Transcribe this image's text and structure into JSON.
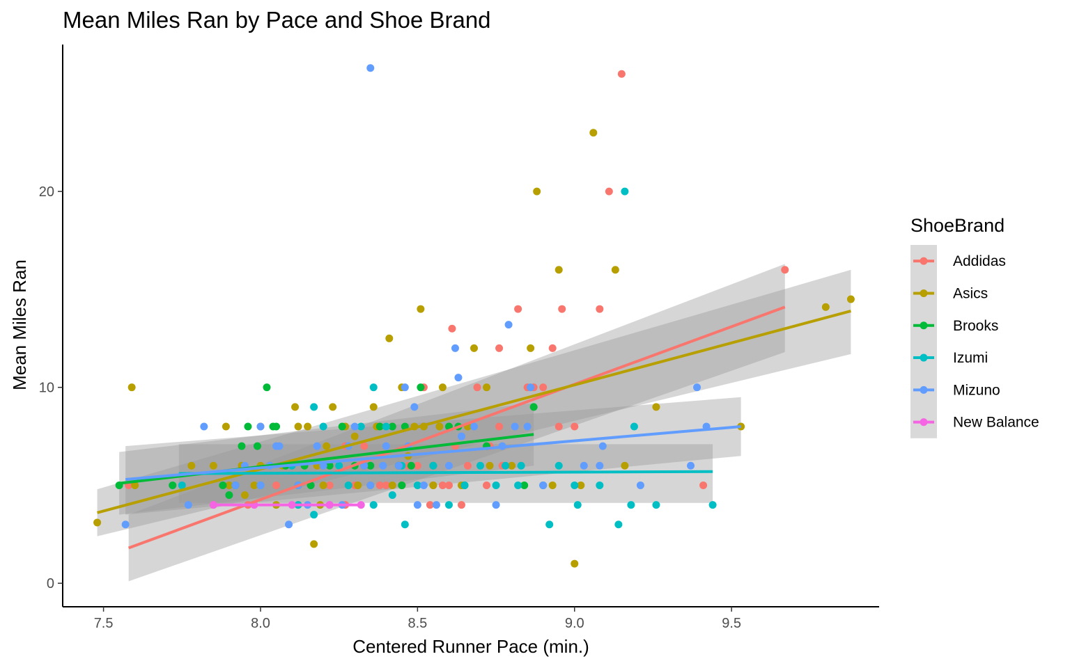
{
  "chart_data": {
    "type": "scatter",
    "title": "Mean Miles Ran by Pace and Shoe Brand",
    "xlabel": "Centered Runner Pace (min.)",
    "ylabel": "Mean Miles Ran",
    "xlim": [
      7.37,
      9.97
    ],
    "ylim": [
      -1.2,
      27.5
    ],
    "x_ticks": [
      7.5,
      8.0,
      8.5,
      9.0,
      9.5
    ],
    "x_tick_labels": [
      "7.5",
      "8.0",
      "8.5",
      "9.0",
      "9.5"
    ],
    "y_ticks": [
      0,
      10,
      20
    ],
    "y_tick_labels": [
      "0",
      "10",
      "20"
    ],
    "grid": false,
    "legend": {
      "title": "ShoeBrand",
      "position": "right"
    },
    "series": [
      {
        "name": "Addidas",
        "color": "#F8766D",
        "fit": {
          "x": [
            7.58,
            9.67
          ],
          "y": [
            1.8,
            14.1
          ],
          "band_lower": [
            0.1,
            11.8
          ],
          "band_upper": [
            3.5,
            16.3
          ]
        },
        "points": [
          [
            7.58,
            5
          ],
          [
            7.88,
            5
          ],
          [
            8.05,
            5
          ],
          [
            8.22,
            5
          ],
          [
            8.35,
            5
          ],
          [
            8.38,
            5
          ],
          [
            8.45,
            5
          ],
          [
            8.55,
            5
          ],
          [
            8.6,
            5
          ],
          [
            8.72,
            5
          ],
          [
            8.9,
            5
          ],
          [
            8.33,
            7
          ],
          [
            8.47,
            6
          ],
          [
            8.52,
            10
          ],
          [
            8.58,
            5
          ],
          [
            8.61,
            13
          ],
          [
            8.62,
            7
          ],
          [
            8.66,
            6
          ],
          [
            8.69,
            10
          ],
          [
            8.73,
            7
          ],
          [
            8.76,
            12
          ],
          [
            8.76,
            8
          ],
          [
            8.77,
            6
          ],
          [
            8.85,
            10
          ],
          [
            8.87,
            10
          ],
          [
            8.9,
            10
          ],
          [
            8.93,
            12
          ],
          [
            8.95,
            8
          ],
          [
            8.96,
            14
          ],
          [
            9.0,
            8
          ],
          [
            9.08,
            14
          ],
          [
            9.11,
            20
          ],
          [
            9.15,
            26
          ],
          [
            8.82,
            14
          ],
          [
            9.67,
            16
          ],
          [
            9.41,
            5
          ],
          [
            8.2,
            6
          ],
          [
            8.1,
            6
          ],
          [
            8.0,
            5
          ],
          [
            7.96,
            4
          ],
          [
            7.85,
            4
          ],
          [
            8.12,
            4
          ],
          [
            8.27,
            4
          ],
          [
            8.4,
            5
          ],
          [
            8.5,
            6
          ],
          [
            8.64,
            4
          ],
          [
            8.54,
            4
          ],
          [
            8.3,
            5
          ],
          [
            8.27,
            7
          ],
          [
            8.42,
            8
          ]
        ]
      },
      {
        "name": "Asics",
        "color": "#B79F00",
        "fit": {
          "x": [
            7.48,
            9.88
          ],
          "y": [
            3.6,
            13.9
          ],
          "band_lower": [
            2.4,
            11.7
          ],
          "band_upper": [
            4.8,
            16.0
          ]
        },
        "points": [
          [
            7.48,
            3.1
          ],
          [
            7.59,
            10
          ],
          [
            7.6,
            5
          ],
          [
            7.78,
            6
          ],
          [
            7.85,
            6
          ],
          [
            7.89,
            8
          ],
          [
            7.94,
            6
          ],
          [
            7.95,
            4.5
          ],
          [
            7.98,
            5
          ],
          [
            8.0,
            6
          ],
          [
            8.05,
            4
          ],
          [
            8.11,
            9
          ],
          [
            8.12,
            8
          ],
          [
            8.15,
            8
          ],
          [
            8.17,
            2
          ],
          [
            8.19,
            4
          ],
          [
            8.21,
            7
          ],
          [
            8.23,
            9
          ],
          [
            8.27,
            8
          ],
          [
            8.3,
            7.5
          ],
          [
            8.31,
            5
          ],
          [
            8.33,
            6
          ],
          [
            8.36,
            9
          ],
          [
            8.37,
            8
          ],
          [
            8.41,
            12.5
          ],
          [
            8.42,
            5
          ],
          [
            8.45,
            10
          ],
          [
            8.47,
            6.5
          ],
          [
            8.49,
            8
          ],
          [
            8.51,
            14
          ],
          [
            8.52,
            8
          ],
          [
            8.55,
            5
          ],
          [
            8.57,
            8
          ],
          [
            8.58,
            10
          ],
          [
            8.6,
            8
          ],
          [
            8.64,
            5
          ],
          [
            8.68,
            12
          ],
          [
            8.72,
            10
          ],
          [
            8.73,
            6
          ],
          [
            8.8,
            6
          ],
          [
            8.86,
            12
          ],
          [
            8.88,
            20
          ],
          [
            8.93,
            5
          ],
          [
            8.95,
            16
          ],
          [
            9.0,
            1
          ],
          [
            9.02,
            5
          ],
          [
            9.06,
            23
          ],
          [
            9.13,
            16
          ],
          [
            9.16,
            6
          ],
          [
            9.26,
            9
          ],
          [
            9.53,
            8
          ],
          [
            9.8,
            14.1
          ],
          [
            9.88,
            14.5
          ],
          [
            7.9,
            5
          ],
          [
            8.07,
            6
          ],
          [
            8.2,
            5
          ],
          [
            8.35,
            5
          ],
          [
            8.45,
            5
          ],
          [
            8.66,
            8
          ],
          [
            8.0,
            8
          ],
          [
            8.18,
            6
          ]
        ]
      },
      {
        "name": "Brooks",
        "color": "#00BA38",
        "fit": {
          "x": [
            7.55,
            8.87
          ],
          "y": [
            5.1,
            7.6
          ],
          "band_lower": [
            3.5,
            6.0
          ],
          "band_upper": [
            6.7,
            9.2
          ]
        },
        "points": [
          [
            7.55,
            5
          ],
          [
            7.72,
            5
          ],
          [
            7.88,
            5
          ],
          [
            7.9,
            4.5
          ],
          [
            7.92,
            5
          ],
          [
            7.94,
            7
          ],
          [
            7.96,
            8
          ],
          [
            7.99,
            7
          ],
          [
            8.02,
            10
          ],
          [
            8.04,
            8
          ],
          [
            8.05,
            8
          ],
          [
            8.08,
            6
          ],
          [
            8.12,
            5
          ],
          [
            8.14,
            6
          ],
          [
            8.16,
            5
          ],
          [
            8.22,
            6
          ],
          [
            8.26,
            8
          ],
          [
            8.3,
            6
          ],
          [
            8.35,
            6
          ],
          [
            8.38,
            8
          ],
          [
            8.42,
            8
          ],
          [
            8.44,
            6
          ],
          [
            8.46,
            8
          ],
          [
            8.48,
            6
          ],
          [
            8.51,
            10
          ],
          [
            8.55,
            6
          ],
          [
            8.6,
            8
          ],
          [
            8.63,
            8
          ],
          [
            8.65,
            5
          ],
          [
            8.72,
            7
          ],
          [
            8.87,
            9
          ],
          [
            8.84,
            5
          ],
          [
            8.45,
            5
          ]
        ]
      },
      {
        "name": "Izumi",
        "color": "#00BFC4",
        "fit": {
          "x": [
            7.74,
            9.44
          ],
          "y": [
            5.6,
            5.7
          ],
          "band_lower": [
            4.1,
            4.1
          ],
          "band_upper": [
            7.1,
            7.1
          ]
        },
        "points": [
          [
            7.75,
            5
          ],
          [
            8.0,
            5
          ],
          [
            8.1,
            6
          ],
          [
            8.17,
            9
          ],
          [
            8.17,
            3.5
          ],
          [
            8.2,
            8
          ],
          [
            8.25,
            6
          ],
          [
            8.28,
            5
          ],
          [
            8.32,
            8
          ],
          [
            8.36,
            10
          ],
          [
            8.36,
            4
          ],
          [
            8.4,
            8
          ],
          [
            8.42,
            4.5
          ],
          [
            8.46,
            3
          ],
          [
            8.5,
            5
          ],
          [
            8.55,
            6
          ],
          [
            8.6,
            4
          ],
          [
            8.65,
            5
          ],
          [
            8.7,
            6
          ],
          [
            8.75,
            5
          ],
          [
            8.78,
            6
          ],
          [
            8.82,
            5
          ],
          [
            8.83,
            6
          ],
          [
            8.9,
            5
          ],
          [
            8.92,
            3
          ],
          [
            8.95,
            6
          ],
          [
            9.0,
            5
          ],
          [
            9.01,
            4
          ],
          [
            9.08,
            5
          ],
          [
            9.14,
            3
          ],
          [
            9.16,
            20
          ],
          [
            9.18,
            4
          ],
          [
            9.19,
            8
          ],
          [
            9.26,
            4
          ],
          [
            9.44,
            4
          ],
          [
            8.12,
            4
          ],
          [
            8.45,
            6
          ]
        ]
      },
      {
        "name": "Mizuno",
        "color": "#619CFF",
        "fit": {
          "x": [
            7.57,
            9.53
          ],
          "y": [
            5.3,
            8.0
          ],
          "band_lower": [
            3.5,
            6.5
          ],
          "band_upper": [
            7.0,
            9.5
          ]
        },
        "points": [
          [
            7.57,
            3
          ],
          [
            7.77,
            4
          ],
          [
            7.82,
            8
          ],
          [
            7.92,
            5
          ],
          [
            7.95,
            6
          ],
          [
            8.0,
            8
          ],
          [
            8.0,
            5
          ],
          [
            8.03,
            6
          ],
          [
            8.05,
            7
          ],
          [
            8.06,
            7
          ],
          [
            8.09,
            3
          ],
          [
            8.12,
            5
          ],
          [
            8.15,
            4
          ],
          [
            8.18,
            7
          ],
          [
            8.2,
            6
          ],
          [
            8.22,
            4
          ],
          [
            8.26,
            4
          ],
          [
            8.28,
            7
          ],
          [
            8.3,
            8
          ],
          [
            8.33,
            6
          ],
          [
            8.35,
            26.3
          ],
          [
            8.39,
            6
          ],
          [
            8.4,
            7
          ],
          [
            8.44,
            6
          ],
          [
            8.46,
            10
          ],
          [
            8.47,
            7
          ],
          [
            8.49,
            9
          ],
          [
            8.52,
            5
          ],
          [
            8.56,
            4
          ],
          [
            8.6,
            6
          ],
          [
            8.62,
            12
          ],
          [
            8.63,
            10.5
          ],
          [
            8.64,
            7.5
          ],
          [
            8.68,
            8
          ],
          [
            8.75,
            4
          ],
          [
            8.77,
            7
          ],
          [
            8.79,
            13.2
          ],
          [
            8.81,
            8
          ],
          [
            8.86,
            10
          ],
          [
            8.9,
            5
          ],
          [
            9.03,
            6
          ],
          [
            9.08,
            6
          ],
          [
            9.09,
            7
          ],
          [
            9.21,
            5
          ],
          [
            9.37,
            6
          ],
          [
            9.39,
            10
          ],
          [
            9.42,
            8
          ],
          [
            8.85,
            8
          ],
          [
            8.5,
            4
          ],
          [
            8.35,
            5
          ]
        ]
      },
      {
        "name": "New Balance",
        "color": "#F564E3",
        "fit": {
          "x": [
            7.85,
            8.32
          ],
          "y": [
            4.0,
            4.0
          ],
          "band_lower": [
            4.0,
            4.0
          ],
          "band_upper": [
            4.0,
            4.0
          ]
        },
        "points": [
          [
            7.85,
            4
          ],
          [
            7.98,
            4
          ],
          [
            8.1,
            4
          ],
          [
            8.22,
            4
          ],
          [
            8.32,
            4
          ]
        ]
      }
    ]
  }
}
